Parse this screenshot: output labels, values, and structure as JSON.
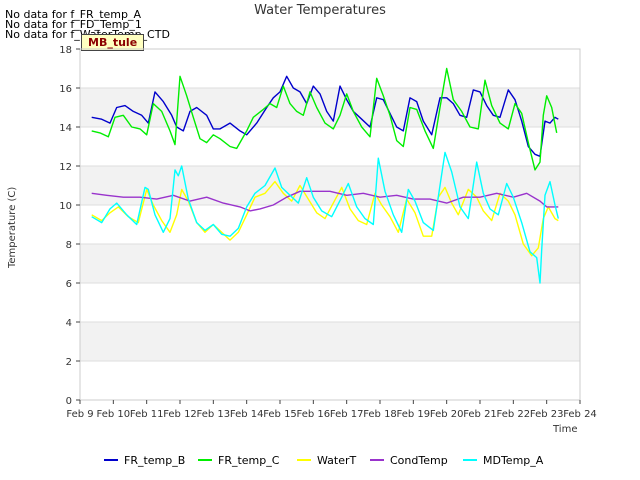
{
  "nodata_messages": [
    "No data for f_FR_temp_A",
    "No data for f_FD_Temp_1",
    "No data for f_WaterTemp_CTD"
  ],
  "site_badge": "MB_tule",
  "chart_data": {
    "type": "line",
    "title": "Water Temperatures",
    "xlabel": "Time",
    "ylabel": "Temperature (C)",
    "xlim": [
      9,
      24
    ],
    "ylim": [
      0,
      18
    ],
    "x_ticks": [
      9,
      10,
      11,
      12,
      13,
      14,
      15,
      16,
      17,
      18,
      19,
      20,
      21,
      22,
      23,
      24
    ],
    "x_tick_labels": [
      "Feb 9",
      "Feb 10",
      "Feb 11",
      "Feb 12",
      "Feb 13",
      "Feb 14",
      "Feb 15",
      "Feb 16",
      "Feb 17",
      "Feb 18",
      "Feb 19",
      "Feb 20",
      "Feb 21",
      "Feb 22",
      "Feb 23",
      "Feb 24"
    ],
    "y_ticks": [
      0,
      2,
      4,
      6,
      8,
      10,
      12,
      14,
      16,
      18
    ],
    "grid": "horizontal alternating bands",
    "legend_position": "bottom",
    "series": [
      {
        "name": "FR_temp_B",
        "color": "#0000cc",
        "x": [
          9.35,
          9.65,
          9.9,
          10.1,
          10.35,
          10.6,
          10.85,
          11.05,
          11.25,
          11.5,
          11.75,
          11.9,
          12.1,
          12.3,
          12.5,
          12.8,
          13.0,
          13.2,
          13.5,
          13.8,
          14.0,
          14.3,
          14.6,
          14.8,
          15.0,
          15.2,
          15.4,
          15.6,
          15.8,
          16.0,
          16.2,
          16.4,
          16.6,
          16.8,
          17.0,
          17.2,
          17.45,
          17.7,
          17.9,
          18.1,
          18.3,
          18.5,
          18.7,
          18.9,
          19.1,
          19.3,
          19.55,
          19.8,
          20.0,
          20.2,
          20.4,
          20.6,
          20.8,
          21.0,
          21.2,
          21.4,
          21.6,
          21.85,
          22.05,
          22.25,
          22.45,
          22.65,
          22.8,
          22.95,
          23.1,
          23.25,
          23.35
        ],
        "values": [
          14.5,
          14.4,
          14.2,
          15.0,
          15.1,
          14.8,
          14.6,
          14.2,
          15.8,
          15.3,
          14.6,
          14.0,
          13.8,
          14.8,
          15.0,
          14.6,
          13.9,
          13.9,
          14.2,
          13.8,
          13.6,
          14.2,
          15.0,
          15.5,
          15.8,
          16.6,
          16.0,
          15.8,
          15.2,
          16.1,
          15.7,
          14.8,
          14.3,
          16.1,
          15.4,
          14.8,
          14.4,
          14.0,
          15.5,
          15.4,
          14.7,
          14.0,
          13.8,
          15.5,
          15.3,
          14.3,
          13.6,
          15.5,
          15.5,
          15.2,
          14.6,
          14.5,
          15.9,
          15.8,
          15.1,
          14.6,
          14.5,
          15.9,
          15.4,
          14.3,
          13.0,
          12.6,
          12.5,
          14.3,
          14.2,
          14.5,
          14.4
        ]
      },
      {
        "name": "FR_temp_C",
        "color": "#00ee00",
        "x": [
          9.35,
          9.6,
          9.85,
          10.05,
          10.3,
          10.55,
          10.8,
          11.0,
          11.2,
          11.45,
          11.7,
          11.85,
          12.0,
          12.2,
          12.4,
          12.6,
          12.8,
          13.0,
          13.2,
          13.5,
          13.7,
          14.0,
          14.2,
          14.5,
          14.7,
          14.9,
          15.1,
          15.3,
          15.5,
          15.7,
          15.9,
          16.1,
          16.35,
          16.6,
          16.8,
          17.0,
          17.2,
          17.45,
          17.7,
          17.9,
          18.1,
          18.3,
          18.5,
          18.7,
          18.9,
          19.1,
          19.35,
          19.6,
          19.8,
          20.0,
          20.2,
          20.45,
          20.7,
          20.95,
          21.15,
          21.35,
          21.6,
          21.85,
          22.05,
          22.25,
          22.45,
          22.65,
          22.8,
          22.9,
          23.0,
          23.15,
          23.3
        ],
        "values": [
          13.8,
          13.7,
          13.5,
          14.5,
          14.6,
          14.0,
          13.9,
          13.6,
          15.2,
          14.8,
          13.8,
          13.1,
          16.6,
          15.6,
          14.5,
          13.4,
          13.2,
          13.6,
          13.4,
          13.0,
          12.9,
          13.8,
          14.5,
          14.9,
          15.2,
          15.0,
          16.1,
          15.2,
          14.8,
          14.6,
          15.8,
          15.0,
          14.2,
          13.9,
          14.6,
          15.7,
          14.8,
          14.0,
          13.5,
          16.5,
          15.6,
          14.6,
          13.3,
          13.0,
          15.0,
          14.9,
          13.8,
          12.9,
          15.0,
          17.0,
          15.4,
          14.8,
          14.0,
          13.9,
          16.4,
          15.1,
          14.2,
          13.9,
          15.2,
          14.7,
          13.2,
          11.8,
          12.2,
          14.6,
          15.6,
          15.0,
          13.7
        ]
      },
      {
        "name": "WaterT",
        "color": "#ffff00",
        "x": [
          9.35,
          9.65,
          9.9,
          10.15,
          10.45,
          10.75,
          11.0,
          11.2,
          11.45,
          11.7,
          11.9,
          12.05,
          12.25,
          12.5,
          12.75,
          13.0,
          13.25,
          13.5,
          13.75,
          14.0,
          14.25,
          14.55,
          14.85,
          15.1,
          15.35,
          15.6,
          15.85,
          16.1,
          16.35,
          16.6,
          16.85,
          17.1,
          17.35,
          17.6,
          17.85,
          18.05,
          18.3,
          18.55,
          18.8,
          19.05,
          19.3,
          19.55,
          19.75,
          19.95,
          20.15,
          20.35,
          20.65,
          20.9,
          21.1,
          21.35,
          21.6,
          21.85,
          22.05,
          22.3,
          22.55,
          22.75,
          22.9,
          23.05,
          23.25,
          23.35
        ],
        "values": [
          9.5,
          9.2,
          9.6,
          9.9,
          9.4,
          9.1,
          10.8,
          10.0,
          9.2,
          8.6,
          9.5,
          10.8,
          10.2,
          9.1,
          8.6,
          9.0,
          8.6,
          8.2,
          8.6,
          9.5,
          10.4,
          10.6,
          11.2,
          10.6,
          10.2,
          11.0,
          10.3,
          9.6,
          9.3,
          10.1,
          10.9,
          9.8,
          9.2,
          9.0,
          10.6,
          10.0,
          9.4,
          8.6,
          10.3,
          9.6,
          8.4,
          8.4,
          10.4,
          10.9,
          10.1,
          9.5,
          10.8,
          10.4,
          9.7,
          9.2,
          10.6,
          10.2,
          9.5,
          8.0,
          7.4,
          7.8,
          9.3,
          9.9,
          9.3,
          9.2
        ]
      },
      {
        "name": "CondTemp",
        "color": "#9933cc",
        "x": [
          9.35,
          9.8,
          10.3,
          10.8,
          11.3,
          11.8,
          12.3,
          12.8,
          13.3,
          13.8,
          14.1,
          14.4,
          14.8,
          15.2,
          15.6,
          16.0,
          16.5,
          17.0,
          17.5,
          18.0,
          18.5,
          19.0,
          19.5,
          20.0,
          20.5,
          21.0,
          21.5,
          22.0,
          22.4,
          22.8,
          23.0,
          23.35
        ],
        "values": [
          10.6,
          10.5,
          10.4,
          10.4,
          10.3,
          10.5,
          10.2,
          10.4,
          10.1,
          9.9,
          9.7,
          9.8,
          10.0,
          10.4,
          10.7,
          10.7,
          10.7,
          10.5,
          10.6,
          10.4,
          10.5,
          10.3,
          10.3,
          10.1,
          10.4,
          10.4,
          10.6,
          10.4,
          10.6,
          10.2,
          9.9,
          9.9
        ]
      },
      {
        "name": "MDTemp_A",
        "color": "#00ffff",
        "x": [
          9.35,
          9.65,
          9.9,
          10.1,
          10.4,
          10.7,
          10.95,
          11.05,
          11.25,
          11.5,
          11.7,
          11.85,
          11.95,
          12.05,
          12.25,
          12.5,
          12.75,
          13.0,
          13.25,
          13.5,
          13.75,
          14.0,
          14.25,
          14.55,
          14.85,
          15.05,
          15.3,
          15.55,
          15.8,
          16.0,
          16.25,
          16.55,
          16.85,
          17.05,
          17.3,
          17.55,
          17.8,
          17.95,
          18.15,
          18.4,
          18.65,
          18.85,
          19.05,
          19.3,
          19.6,
          19.8,
          19.95,
          20.15,
          20.4,
          20.65,
          20.9,
          21.1,
          21.3,
          21.55,
          21.8,
          22.0,
          22.25,
          22.5,
          22.7,
          22.8,
          22.85,
          22.95,
          23.1,
          23.25,
          23.35
        ],
        "values": [
          9.4,
          9.1,
          9.8,
          10.1,
          9.5,
          9.0,
          10.9,
          10.8,
          9.5,
          8.6,
          9.3,
          11.8,
          11.5,
          12.0,
          10.3,
          9.1,
          8.7,
          9.0,
          8.5,
          8.4,
          8.8,
          9.9,
          10.6,
          11.0,
          11.9,
          10.9,
          10.5,
          10.1,
          11.4,
          10.4,
          9.7,
          9.4,
          10.4,
          11.1,
          9.9,
          9.3,
          9.0,
          12.4,
          10.7,
          9.5,
          8.6,
          10.8,
          10.2,
          9.1,
          8.7,
          11.0,
          12.7,
          11.7,
          9.9,
          9.3,
          12.2,
          10.6,
          9.8,
          9.5,
          11.1,
          10.4,
          9.1,
          7.6,
          7.3,
          6.0,
          7.7,
          10.5,
          11.2,
          10.0,
          9.3
        ]
      }
    ]
  }
}
